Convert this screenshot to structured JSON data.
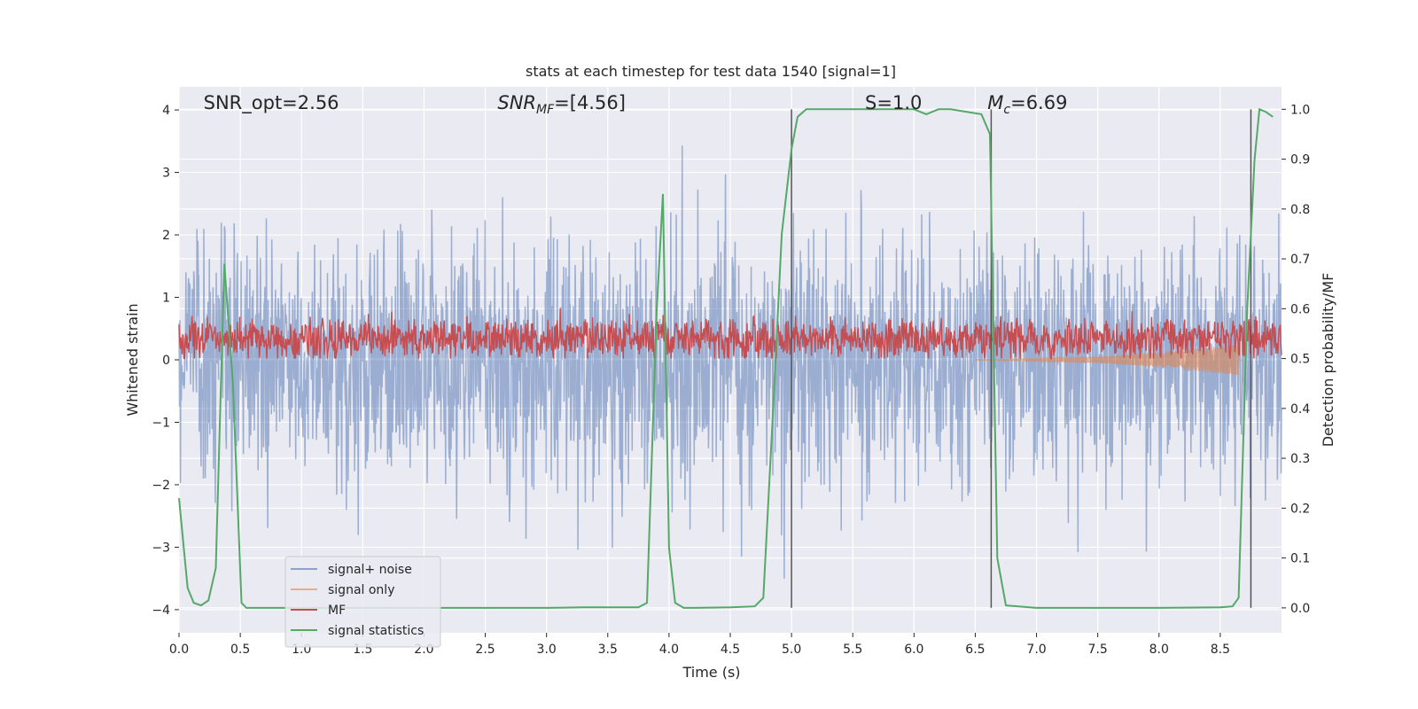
{
  "chart_data": {
    "type": "line",
    "title": "stats at each timestep for test data 1540 [signal=1]",
    "xlabel": "Time (s)",
    "ylabel": "Whitened strain",
    "y2label": "Detection probability/MF",
    "xlim": [
      0.0,
      9.0
    ],
    "ylim": [
      -4.37,
      4.37
    ],
    "y2lim": [
      -0.05,
      1.045
    ],
    "xticks": [
      "0.0",
      "0.5",
      "1.0",
      "1.5",
      "2.0",
      "2.5",
      "3.0",
      "3.5",
      "4.0",
      "4.5",
      "5.0",
      "5.5",
      "6.0",
      "6.5",
      "7.0",
      "7.5",
      "8.0",
      "8.5"
    ],
    "yticks": [
      "4",
      "3",
      "2",
      "1",
      "0",
      "−1",
      "−2",
      "−3",
      "−4"
    ],
    "y2ticks": [
      "1.0",
      "0.9",
      "0.8",
      "0.7",
      "0.6",
      "0.5",
      "0.4",
      "0.3",
      "0.2",
      "0.1",
      "0.0"
    ],
    "grid": true,
    "legend_position": "lower-left",
    "annotations": [
      {
        "text": "SNR_opt=2.56",
        "x": 0.2
      },
      {
        "text": "SNR",
        "sub": "MF",
        "suffix": "=[4.56]",
        "x": 2.6
      },
      {
        "text": "S",
        "suffix": "=1.0",
        "x": 5.6
      },
      {
        "text": "M",
        "sub": "c",
        "suffix": "=6.69",
        "x": 6.6
      }
    ],
    "vlines_x": [
      5.0,
      6.63,
      8.75
    ],
    "series": [
      {
        "name": "signal+ noise",
        "color": "#4c72b0",
        "description": "dense noise around 0, range approx -4 to 4",
        "amplitude_sigma": 1.0
      },
      {
        "name": "signal only",
        "color": "#dd8452",
        "description": "chirp growing toward 8.7s",
        "x": [
          7.0,
          7.5,
          8.0,
          8.3,
          8.5,
          8.65
        ],
        "amplitude": [
          0.02,
          0.05,
          0.12,
          0.18,
          0.22,
          0.25
        ]
      },
      {
        "name": "MF",
        "color": "#c44e52",
        "axis": "y2",
        "description": "fluctuating around 0.54 on right axis",
        "mean": 0.54,
        "spread": 0.03
      },
      {
        "name": "signal statistics",
        "color": "#55a868",
        "axis": "y2",
        "x": [
          0.0,
          0.07,
          0.12,
          0.18,
          0.24,
          0.3,
          0.37,
          0.44,
          0.51,
          0.55,
          1.0,
          2.0,
          3.0,
          3.3,
          3.5,
          3.75,
          3.82,
          3.9,
          3.95,
          4.0,
          4.05,
          4.12,
          4.2,
          4.5,
          4.7,
          4.77,
          4.85,
          4.92,
          5.0,
          5.05,
          5.12,
          5.5,
          6.0,
          6.1,
          6.2,
          6.3,
          6.55,
          6.62,
          6.68,
          6.75,
          7.0,
          8.0,
          8.5,
          8.6,
          8.65,
          8.72,
          8.78,
          8.82,
          8.87,
          8.93
        ],
        "y": [
          0.22,
          0.04,
          0.01,
          0.005,
          0.015,
          0.08,
          0.69,
          0.45,
          0.01,
          0.0,
          0.0,
          0.0,
          0.0,
          0.001,
          0.001,
          0.001,
          0.01,
          0.6,
          0.83,
          0.12,
          0.01,
          0.0,
          0.0,
          0.001,
          0.003,
          0.02,
          0.4,
          0.75,
          0.92,
          0.985,
          1.0,
          1.0,
          1.0,
          0.99,
          1.0,
          1.0,
          0.99,
          0.95,
          0.1,
          0.005,
          0.0,
          0.0,
          0.001,
          0.003,
          0.02,
          0.6,
          0.9,
          1.0,
          0.995,
          0.985
        ]
      }
    ]
  }
}
